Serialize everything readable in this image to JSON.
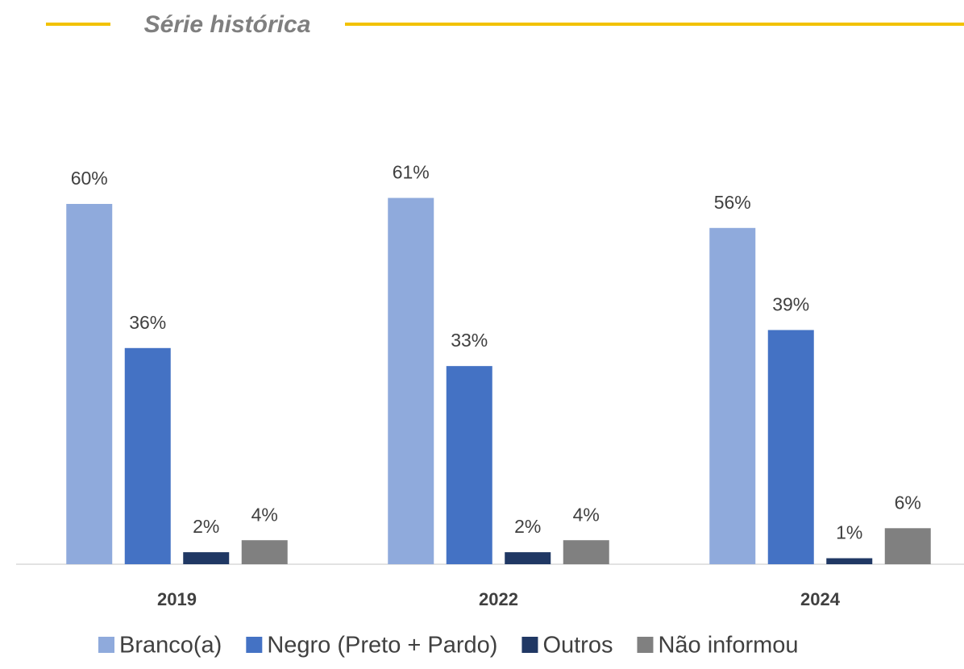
{
  "chart_data": {
    "type": "bar",
    "title": "Série histórica",
    "categories": [
      "2019",
      "2022",
      "2024"
    ],
    "series": [
      {
        "name": "Branco(a)",
        "color": "#8faadc",
        "values": [
          60,
          61,
          56
        ],
        "value_labels": [
          "60%",
          "61%",
          "56%"
        ]
      },
      {
        "name": "Negro (Preto + Pardo)",
        "color": "#4472c4",
        "values": [
          36,
          33,
          39
        ],
        "value_labels": [
          "36%",
          "33%",
          "39%"
        ]
      },
      {
        "name": "Outros",
        "color": "#203864",
        "values": [
          2,
          2,
          1
        ],
        "value_labels": [
          "2%",
          "2%",
          "1%"
        ]
      },
      {
        "name": "Não informou",
        "color": "#808080",
        "values": [
          4,
          4,
          6
        ],
        "value_labels": [
          "4%",
          "4%",
          "6%"
        ]
      }
    ],
    "legend": "bottom"
  }
}
